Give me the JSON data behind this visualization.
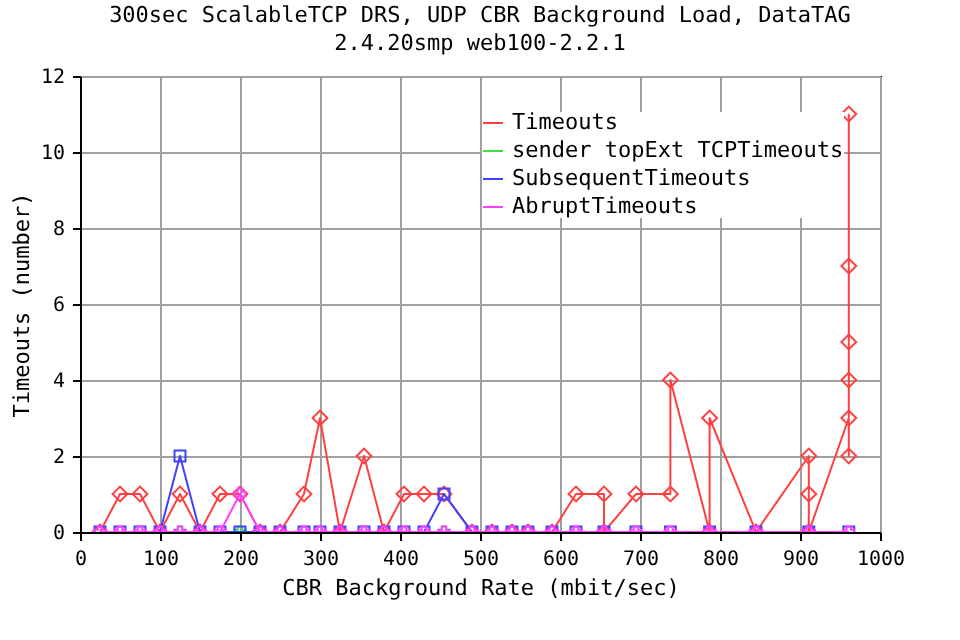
{
  "chart_data": {
    "type": "line",
    "title": "300sec ScalableTCP DRS, UDP CBR Background Load, DataTAG",
    "subtitle": "2.4.20smp web100-2.2.1",
    "xlabel": "CBR Background Rate (mbit/sec)",
    "ylabel": "Timeouts (number)",
    "xlim": [
      0,
      1000
    ],
    "xticks": [
      0,
      100,
      200,
      300,
      400,
      500,
      600,
      700,
      800,
      900,
      1000
    ],
    "ylim": [
      0,
      12
    ],
    "yticks": [
      0,
      2,
      4,
      6,
      8,
      10,
      12
    ],
    "grid": true,
    "legend": "top right",
    "x": [
      25,
      50,
      75,
      100,
      125,
      150,
      175,
      200,
      225,
      250,
      280,
      300,
      325,
      355,
      380,
      405,
      430,
      455,
      490,
      515,
      540,
      560,
      590,
      620,
      655,
      695,
      738,
      787,
      845,
      911,
      961
    ],
    "series": [
      {
        "name": "Timeouts",
        "color": "#ff4040",
        "marker": "diamond",
        "x": [
          25,
          50,
          75,
          100,
          125,
          150,
          175,
          200,
          225,
          250,
          280,
          300,
          325,
          355,
          380,
          405,
          430,
          455,
          490,
          515,
          540,
          560,
          590,
          620,
          655,
          655,
          695,
          738,
          738,
          787,
          787,
          845,
          911,
          911,
          911,
          961,
          961,
          961,
          961,
          961,
          961
        ],
        "values": [
          0,
          1,
          1,
          0,
          1,
          0,
          1,
          1,
          0,
          0,
          1,
          3,
          0,
          2,
          0,
          1,
          1,
          1,
          0,
          0,
          0,
          0,
          0,
          1,
          1,
          0,
          1,
          1,
          4,
          0,
          3,
          0,
          2,
          1,
          0,
          3,
          2,
          4,
          5,
          7,
          11
        ]
      },
      {
        "name": "sender topExt TCPTimeouts",
        "color": "#40e040",
        "marker": "cross",
        "values": [
          null,
          null,
          null,
          null,
          0,
          null,
          null,
          0,
          null,
          null,
          null,
          null,
          null,
          null,
          null,
          null,
          null,
          0,
          null,
          null,
          null,
          null,
          null,
          null,
          null,
          null,
          null,
          null,
          null,
          null,
          null
        ]
      },
      {
        "name": "SubsequentTimeouts",
        "color": "#4040ff",
        "marker": "square",
        "values": [
          0,
          0,
          0,
          0,
          2,
          0,
          0,
          0,
          0,
          0,
          0,
          0,
          0,
          0,
          0,
          0,
          0,
          1,
          0,
          0,
          0,
          0,
          0,
          0,
          0,
          0,
          0,
          0,
          0,
          0,
          0
        ]
      },
      {
        "name": "AbruptTimeouts",
        "color": "#ff40ff",
        "marker": "cross",
        "values": [
          0,
          0,
          0,
          0,
          0,
          0,
          0,
          1,
          0,
          0,
          0,
          0,
          0,
          0,
          0,
          0,
          0,
          0,
          0,
          0,
          0,
          0,
          0,
          0,
          0,
          0,
          0,
          0,
          0,
          0,
          0
        ]
      }
    ]
  }
}
